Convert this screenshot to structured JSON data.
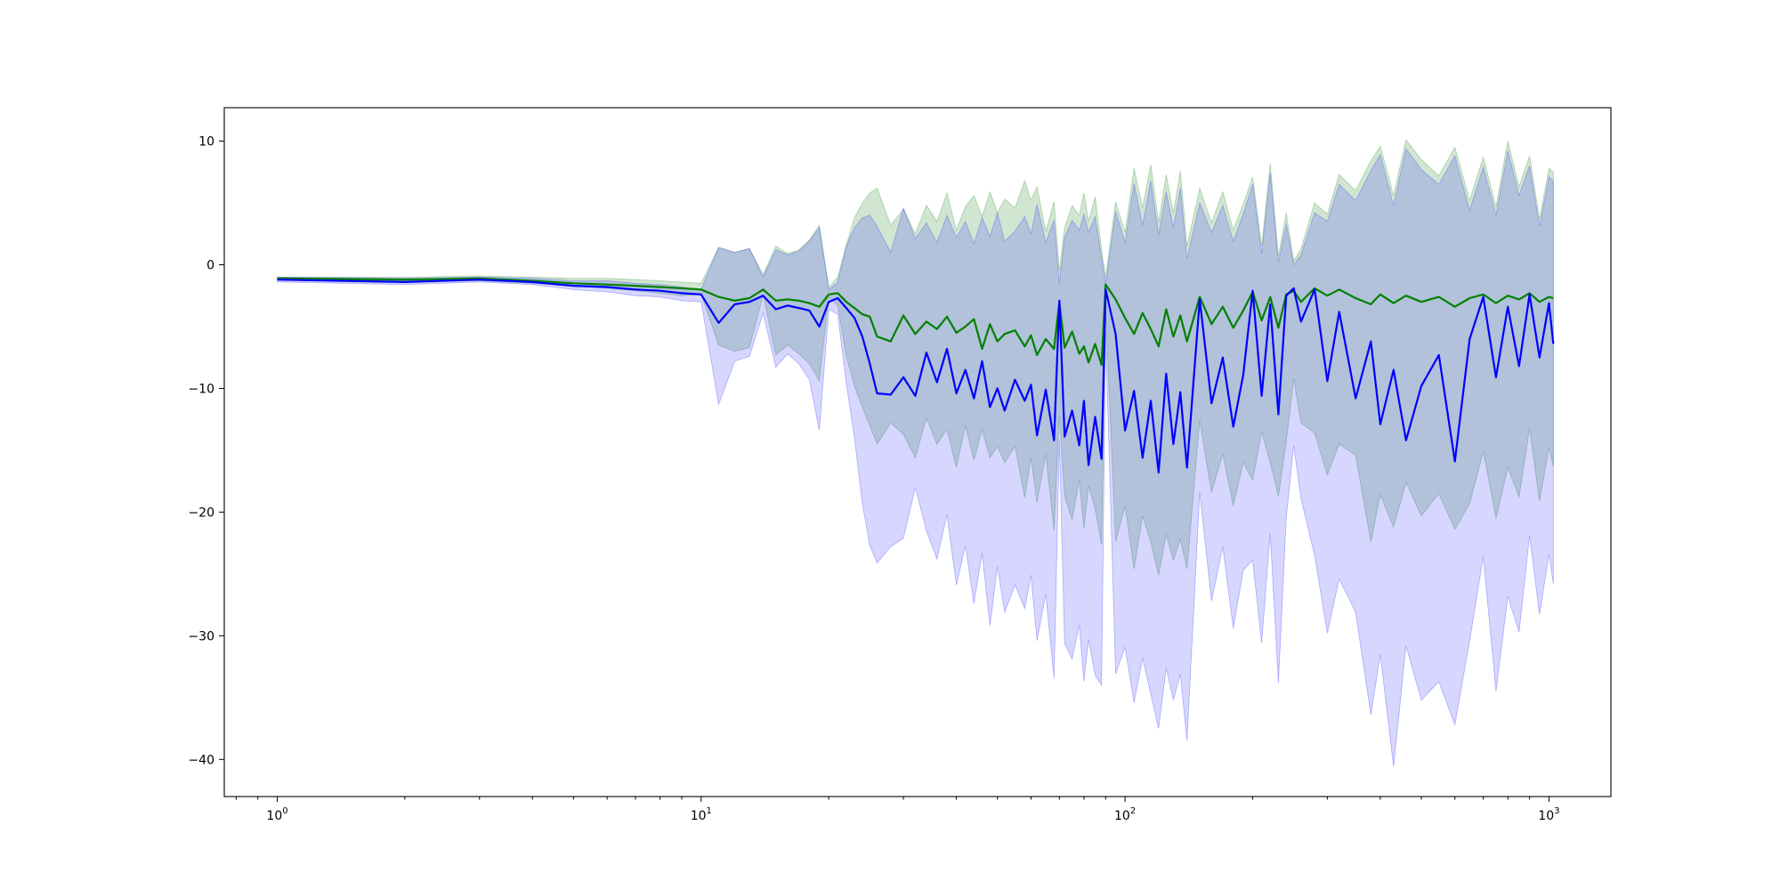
{
  "chart_data": {
    "type": "area",
    "title": "",
    "xlabel": "",
    "ylabel": "",
    "x_scale": "log",
    "xlim": [
      0.75,
      1400
    ],
    "ylim": [
      -43,
      12.7
    ],
    "grid": false,
    "legend": "none",
    "x_ticks": [
      {
        "value": 1,
        "base": "10",
        "exp": "0"
      },
      {
        "value": 10,
        "base": "10",
        "exp": "1"
      },
      {
        "value": 100,
        "base": "10",
        "exp": "2"
      },
      {
        "value": 1000,
        "base": "10",
        "exp": "3"
      }
    ],
    "y_ticks": [
      {
        "value": 10,
        "label": "10"
      },
      {
        "value": 0,
        "label": "0"
      },
      {
        "value": -10,
        "label": "−10"
      },
      {
        "value": -20,
        "label": "−20"
      },
      {
        "value": -30,
        "label": "−30"
      },
      {
        "value": -40,
        "label": "−40"
      }
    ],
    "series": [
      {
        "color": "#008000",
        "band_color": "#2e8b2e",
        "band_opacity": 0.22,
        "x": [
          1,
          2,
          3,
          4,
          5,
          6,
          7,
          8,
          9,
          10,
          11,
          12,
          13,
          14,
          15,
          16,
          17,
          18,
          19,
          20,
          21,
          22,
          23,
          24,
          25,
          26,
          28,
          30,
          32,
          34,
          36,
          38,
          40,
          42,
          44,
          46,
          48,
          50,
          52,
          55,
          58,
          60,
          62,
          65,
          68,
          70,
          72,
          75,
          78,
          80,
          82,
          85,
          88,
          90,
          95,
          100,
          105,
          110,
          115,
          120,
          125,
          130,
          135,
          140,
          150,
          160,
          170,
          180,
          190,
          200,
          210,
          220,
          230,
          240,
          250,
          260,
          280,
          300,
          320,
          350,
          380,
          400,
          430,
          460,
          500,
          550,
          600,
          650,
          700,
          750,
          800,
          850,
          900,
          950,
          1000,
          1024
        ],
        "mean": [
          -1.1,
          -1.2,
          -1.1,
          -1.3,
          -1.5,
          -1.6,
          -1.7,
          -1.8,
          -1.9,
          -2.0,
          -2.6,
          -2.9,
          -2.7,
          -2.0,
          -2.9,
          -2.8,
          -2.9,
          -3.1,
          -3.4,
          -2.4,
          -2.3,
          -3.0,
          -3.5,
          -4.0,
          -4.2,
          -5.8,
          -6.2,
          -4.1,
          -5.6,
          -4.6,
          -5.2,
          -4.2,
          -5.5,
          -5.0,
          -4.4,
          -6.8,
          -4.8,
          -6.2,
          -5.6,
          -5.3,
          -6.6,
          -5.7,
          -7.3,
          -6.0,
          -6.8,
          -3.0,
          -6.7,
          -5.4,
          -7.2,
          -6.6,
          -7.9,
          -6.4,
          -8.1,
          -1.6,
          -2.8,
          -4.3,
          -5.6,
          -3.9,
          -5.2,
          -6.6,
          -3.6,
          -5.8,
          -4.1,
          -6.2,
          -2.6,
          -4.8,
          -3.4,
          -5.1,
          -3.7,
          -2.2,
          -4.5,
          -2.6,
          -5.1,
          -2.4,
          -2.1,
          -3.0,
          -1.9,
          -2.5,
          -2.0,
          -2.7,
          -3.2,
          -2.4,
          -3.1,
          -2.5,
          -3.0,
          -2.6,
          -3.4,
          -2.7,
          -2.4,
          -3.1,
          -2.5,
          -2.8,
          -2.3,
          -3.0,
          -2.6,
          -2.7
        ],
        "upper": [
          -1.0,
          -1.0,
          -0.9,
          -1.0,
          -1.1,
          -1.1,
          -1.2,
          -1.3,
          -1.4,
          -1.5,
          1.4,
          1.0,
          1.3,
          -0.8,
          1.5,
          0.9,
          1.2,
          2.0,
          3.2,
          -1.8,
          -1.0,
          1.6,
          3.8,
          5.0,
          5.8,
          6.2,
          3.2,
          4.5,
          2.5,
          4.8,
          3.5,
          5.8,
          2.8,
          4.7,
          5.6,
          3.9,
          5.9,
          4.2,
          5.3,
          4.6,
          6.8,
          5.2,
          6.3,
          2.7,
          5.1,
          -0.5,
          3.0,
          4.8,
          4.0,
          5.8,
          3.5,
          5.5,
          1.2,
          -1.0,
          5.1,
          2.6,
          7.8,
          4.6,
          8.1,
          3.4,
          7.3,
          4.2,
          7.6,
          1.5,
          6.2,
          3.4,
          5.9,
          2.8,
          4.9,
          7.1,
          1.5,
          8.2,
          0.7,
          4.2,
          0.3,
          1.3,
          5.0,
          4.1,
          7.3,
          6.0,
          8.4,
          9.6,
          5.6,
          10.1,
          8.5,
          7.2,
          9.5,
          5.2,
          8.7,
          4.7,
          10.0,
          6.3,
          8.8,
          3.7,
          7.8,
          7.5
        ],
        "lower": [
          -1.2,
          -1.3,
          -1.3,
          -1.5,
          -1.7,
          -1.9,
          -2.1,
          -2.3,
          -2.5,
          -2.4,
          -6.5,
          -7.0,
          -6.7,
          -2.4,
          -7.3,
          -6.5,
          -7.2,
          -8.0,
          -9.4,
          -2.6,
          -3.3,
          -7.4,
          -9.8,
          -11.5,
          -13.0,
          -14.5,
          -12.8,
          -13.7,
          -15.6,
          -12.4,
          -14.5,
          -13.3,
          -16.4,
          -13.0,
          -15.8,
          -13.3,
          -15.6,
          -14.7,
          -16.0,
          -14.7,
          -18.8,
          -15.6,
          -19.2,
          -15.3,
          -21.5,
          -12.1,
          -18.7,
          -20.6,
          -17.4,
          -21.3,
          -17.9,
          -19.7,
          -22.6,
          -3.5,
          -22.4,
          -19.5,
          -24.6,
          -20.3,
          -22.4,
          -25.1,
          -21.8,
          -23.9,
          -22.2,
          -24.6,
          -12.6,
          -18.4,
          -15.3,
          -19.5,
          -16.0,
          -17.4,
          -13.5,
          -16.0,
          -18.7,
          -14.3,
          -9.2,
          -12.8,
          -13.6,
          -17.0,
          -14.5,
          -15.4,
          -22.4,
          -18.6,
          -21.2,
          -17.6,
          -20.3,
          -18.5,
          -21.4,
          -19.3,
          -15.1,
          -20.5,
          -16.4,
          -18.8,
          -13.2,
          -19.1,
          -14.8,
          -16.3
        ]
      },
      {
        "color": "#0000ff",
        "band_color": "#3333ff",
        "band_opacity": 0.2,
        "x": [
          1,
          2,
          3,
          4,
          5,
          6,
          7,
          8,
          9,
          10,
          11,
          12,
          13,
          14,
          15,
          16,
          17,
          18,
          19,
          20,
          21,
          22,
          23,
          24,
          25,
          26,
          28,
          30,
          32,
          34,
          36,
          38,
          40,
          42,
          44,
          46,
          48,
          50,
          52,
          55,
          58,
          60,
          62,
          65,
          68,
          70,
          72,
          75,
          78,
          80,
          82,
          85,
          88,
          90,
          95,
          100,
          105,
          110,
          115,
          120,
          125,
          130,
          135,
          140,
          150,
          160,
          170,
          180,
          190,
          200,
          210,
          220,
          230,
          240,
          250,
          260,
          280,
          300,
          320,
          350,
          380,
          400,
          430,
          460,
          500,
          550,
          600,
          650,
          700,
          750,
          800,
          850,
          900,
          950,
          1000,
          1024
        ],
        "mean": [
          -1.2,
          -1.4,
          -1.2,
          -1.4,
          -1.7,
          -1.8,
          -2.0,
          -2.1,
          -2.3,
          -2.4,
          -4.7,
          -3.2,
          -3.0,
          -2.5,
          -3.6,
          -3.3,
          -3.5,
          -3.7,
          -5.0,
          -3.0,
          -2.7,
          -3.5,
          -4.3,
          -5.8,
          -8.0,
          -10.4,
          -10.5,
          -9.1,
          -10.6,
          -7.1,
          -9.5,
          -6.8,
          -10.4,
          -8.5,
          -10.8,
          -7.8,
          -11.5,
          -10.0,
          -11.8,
          -9.3,
          -11.0,
          -9.7,
          -13.8,
          -10.1,
          -14.2,
          -2.9,
          -13.9,
          -11.8,
          -14.6,
          -11.0,
          -16.2,
          -12.3,
          -15.7,
          -2.0,
          -5.6,
          -13.4,
          -10.2,
          -15.6,
          -11.0,
          -16.8,
          -8.8,
          -14.5,
          -10.3,
          -16.4,
          -2.8,
          -11.2,
          -7.5,
          -13.1,
          -8.9,
          -2.1,
          -10.6,
          -3.2,
          -12.1,
          -2.5,
          -1.9,
          -4.6,
          -2.0,
          -9.4,
          -3.8,
          -10.8,
          -6.2,
          -12.9,
          -8.5,
          -14.2,
          -9.8,
          -7.3,
          -15.9,
          -6.0,
          -2.6,
          -9.1,
          -3.4,
          -8.2,
          -2.4,
          -7.5,
          -3.1,
          -6.4
        ],
        "upper": [
          -1.0,
          -1.1,
          -1.0,
          -1.1,
          -1.3,
          -1.3,
          -1.5,
          -1.6,
          -1.8,
          -2.0,
          1.4,
          1.0,
          1.3,
          -1.0,
          1.2,
          0.8,
          1.1,
          1.9,
          3.0,
          -2.0,
          -1.4,
          1.5,
          3.0,
          3.8,
          4.0,
          3.1,
          1.0,
          4.6,
          2.1,
          3.4,
          1.8,
          4.0,
          2.2,
          3.5,
          1.7,
          3.8,
          2.3,
          4.2,
          1.9,
          2.7,
          3.9,
          2.5,
          4.9,
          1.8,
          3.6,
          -1.5,
          2.2,
          3.6,
          2.8,
          4.1,
          2.6,
          3.9,
          0.6,
          -1.6,
          4.3,
          1.8,
          6.6,
          3.2,
          6.8,
          2.4,
          5.9,
          3.0,
          6.2,
          0.5,
          5.0,
          2.6,
          4.8,
          1.9,
          4.1,
          6.5,
          0.9,
          7.4,
          0.2,
          3.3,
          0.0,
          0.8,
          4.2,
          3.5,
          6.5,
          5.2,
          7.6,
          8.9,
          4.8,
          9.4,
          7.7,
          6.5,
          8.8,
          4.4,
          7.9,
          4.0,
          9.2,
          5.6,
          8.0,
          3.1,
          7.1,
          6.8
        ],
        "lower": [
          -1.4,
          -1.6,
          -1.4,
          -1.6,
          -2.0,
          -2.2,
          -2.5,
          -2.6,
          -2.9,
          -3.0,
          -11.3,
          -7.8,
          -7.4,
          -3.9,
          -8.3,
          -7.2,
          -8.0,
          -9.3,
          -13.4,
          -3.6,
          -4.0,
          -9.6,
          -14.0,
          -19.3,
          -22.7,
          -24.1,
          -22.8,
          -22.1,
          -18.0,
          -21.5,
          -23.8,
          -20.2,
          -25.9,
          -22.7,
          -27.4,
          -23.3,
          -29.2,
          -24.4,
          -28.1,
          -25.9,
          -27.8,
          -25.1,
          -30.4,
          -26.6,
          -33.5,
          -14.2,
          -30.6,
          -31.9,
          -29.1,
          -33.7,
          -30.3,
          -33.2,
          -34.0,
          -5.6,
          -33.1,
          -30.9,
          -35.4,
          -31.8,
          -34.7,
          -37.5,
          -32.6,
          -35.2,
          -33.1,
          -38.5,
          -18.4,
          -27.2,
          -22.8,
          -29.4,
          -24.7,
          -23.9,
          -30.6,
          -21.7,
          -33.8,
          -20.5,
          -14.6,
          -18.9,
          -23.5,
          -29.8,
          -25.4,
          -28.1,
          -36.4,
          -31.5,
          -40.6,
          -30.8,
          -35.2,
          -33.7,
          -37.2,
          -30.4,
          -23.6,
          -34.5,
          -26.8,
          -29.7,
          -21.9,
          -28.3,
          -23.4,
          -25.8
        ]
      }
    ]
  }
}
